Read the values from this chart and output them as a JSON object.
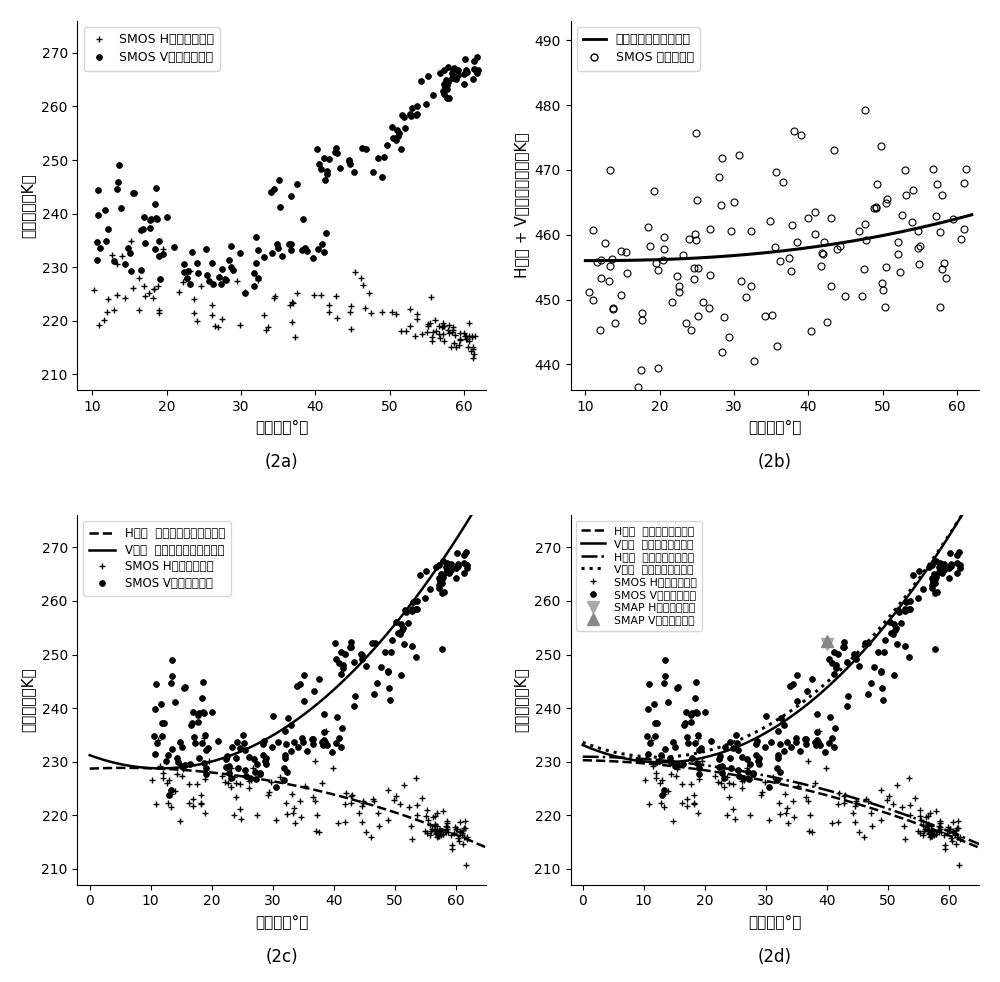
{
  "fig_width": 10.0,
  "fig_height": 9.82,
  "subplot_labels": [
    "(2a)",
    "(2b)",
    "(2c)",
    "(2d)"
  ],
  "xlabel": "入射角（°）",
  "ylabel_a": "亮度温度（K）",
  "ylabel_b": "H极化 + V极化亮度温度（K）",
  "ylabel_c": "亮度温度（K）",
  "ylabel_d": "亮度温度（K）"
}
